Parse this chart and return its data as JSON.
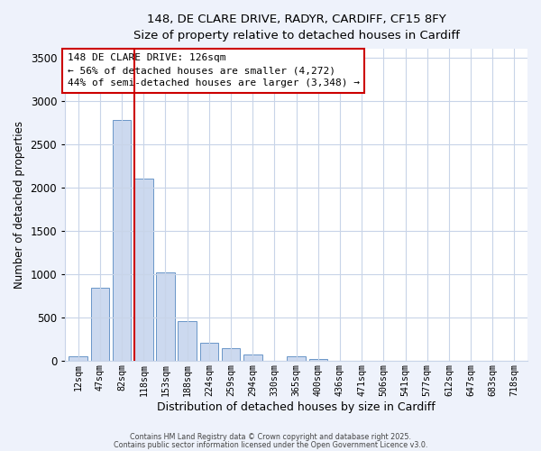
{
  "title": "148, DE CLARE DRIVE, RADYR, CARDIFF, CF15 8FY",
  "subtitle": "Size of property relative to detached houses in Cardiff",
  "xlabel": "Distribution of detached houses by size in Cardiff",
  "ylabel": "Number of detached properties",
  "bar_labels": [
    "12sqm",
    "47sqm",
    "82sqm",
    "118sqm",
    "153sqm",
    "188sqm",
    "224sqm",
    "259sqm",
    "294sqm",
    "330sqm",
    "365sqm",
    "400sqm",
    "436sqm",
    "471sqm",
    "506sqm",
    "541sqm",
    "577sqm",
    "612sqm",
    "647sqm",
    "683sqm",
    "718sqm"
  ],
  "bar_values": [
    55,
    845,
    2775,
    2105,
    1025,
    455,
    210,
    145,
    70,
    0,
    55,
    25,
    5,
    5,
    0,
    0,
    0,
    0,
    0,
    0,
    0
  ],
  "bar_color": "#ccd9ef",
  "bar_edgecolor": "#6a96c8",
  "vline_color": "#cc0000",
  "vline_x_index": 3,
  "annotation_box_text": "148 DE CLARE DRIVE: 126sqm\n← 56% of detached houses are smaller (4,272)\n44% of semi-detached houses are larger (3,348) →",
  "footer1": "Contains HM Land Registry data © Crown copyright and database right 2025.",
  "footer2": "Contains public sector information licensed under the Open Government Licence v3.0.",
  "ylim": [
    0,
    3600
  ],
  "yticks": [
    0,
    500,
    1000,
    1500,
    2000,
    2500,
    3000,
    3500
  ],
  "bg_color": "#eef2fb",
  "plot_bg_color": "#ffffff",
  "grid_color": "#c8d4e8"
}
